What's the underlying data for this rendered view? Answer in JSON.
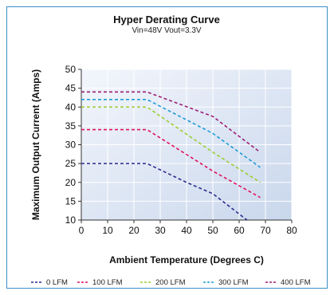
{
  "chart_data": {
    "type": "line",
    "title": "Hyper Derating Curve",
    "subtitle": "Vin=48V   Vout=3.3V",
    "xlabel": "Ambient Temperature (Degrees C)",
    "ylabel": "Maximum Output Current (Amps)",
    "xlim": [
      0,
      80
    ],
    "ylim": [
      10,
      50
    ],
    "xticks": [
      0,
      10,
      20,
      30,
      40,
      50,
      60,
      70,
      80
    ],
    "yticks": [
      10,
      15,
      20,
      25,
      30,
      35,
      40,
      45,
      50
    ],
    "grid": true,
    "legend_position": "bottom",
    "series": [
      {
        "name": "0 LFM",
        "color": "#2b2b8f",
        "line_style": "dashed",
        "x": [
          0,
          25,
          40,
          50,
          63
        ],
        "y": [
          25,
          25,
          20,
          17,
          10
        ]
      },
      {
        "name": "100 LFM",
        "color": "#e0135e",
        "line_style": "dashed",
        "x": [
          0,
          25,
          50,
          68
        ],
        "y": [
          34,
          34,
          23,
          16
        ]
      },
      {
        "name": "200 LFM",
        "color": "#9acd32",
        "line_style": "dashed",
        "x": [
          0,
          25,
          50,
          68
        ],
        "y": [
          40,
          40,
          28,
          20
        ]
      },
      {
        "name": "300 LFM",
        "color": "#1e9bd7",
        "line_style": "dashed",
        "x": [
          0,
          25,
          50,
          68
        ],
        "y": [
          42,
          42,
          33,
          24
        ]
      },
      {
        "name": "400 LFM",
        "color": "#9b1d74",
        "line_style": "dashed",
        "x": [
          0,
          25,
          50,
          68
        ],
        "y": [
          44,
          44,
          37.5,
          28
        ]
      }
    ]
  }
}
